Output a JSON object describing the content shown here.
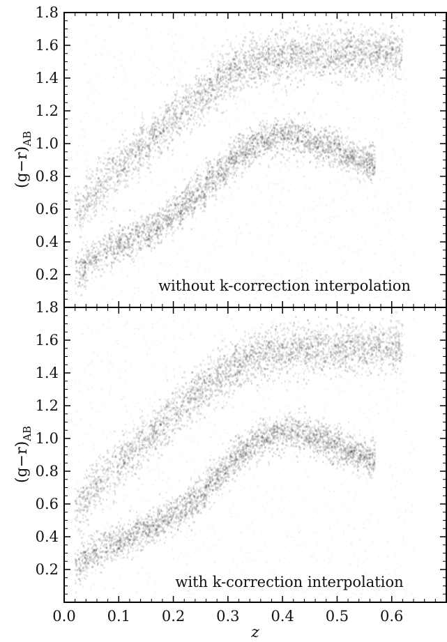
{
  "chart_data": [
    {
      "type": "heatmap",
      "panel": "top",
      "annotation": "without k-correction interpolation",
      "ylabel": "(g−r)",
      "ylabel_sub": "AB",
      "xlim": [
        0.0,
        0.7
      ],
      "ylim": [
        0.0,
        1.8
      ],
      "yticks": [
        "0.2",
        "0.4",
        "0.6",
        "0.8",
        "1.0",
        "1.2",
        "1.4",
        "1.6",
        "1.8"
      ],
      "ytick_values": [
        0.2,
        0.4,
        0.6,
        0.8,
        1.0,
        1.2,
        1.4,
        1.6,
        1.8
      ],
      "grid": false,
      "interpolated": false,
      "red_sequence": [
        {
          "z": 0.02,
          "color": 0.56
        },
        {
          "z": 0.05,
          "color": 0.68
        },
        {
          "z": 0.1,
          "color": 0.85
        },
        {
          "z": 0.15,
          "color": 1.0
        },
        {
          "z": 0.2,
          "color": 1.15
        },
        {
          "z": 0.25,
          "color": 1.3
        },
        {
          "z": 0.3,
          "color": 1.42
        },
        {
          "z": 0.35,
          "color": 1.5
        },
        {
          "z": 0.4,
          "color": 1.54
        },
        {
          "z": 0.5,
          "color": 1.55
        },
        {
          "z": 0.6,
          "color": 1.56
        }
      ],
      "blue_cloud": [
        {
          "z": 0.02,
          "color": 0.2
        },
        {
          "z": 0.05,
          "color": 0.3
        },
        {
          "z": 0.1,
          "color": 0.38
        },
        {
          "z": 0.15,
          "color": 0.46
        },
        {
          "z": 0.2,
          "color": 0.56
        },
        {
          "z": 0.25,
          "color": 0.72
        },
        {
          "z": 0.3,
          "color": 0.88
        },
        {
          "z": 0.35,
          "color": 1.0
        },
        {
          "z": 0.4,
          "color": 1.06
        },
        {
          "z": 0.45,
          "color": 1.02
        },
        {
          "z": 0.5,
          "color": 0.96
        },
        {
          "z": 0.56,
          "color": 0.88
        }
      ]
    },
    {
      "type": "heatmap",
      "panel": "bottom",
      "annotation": "with k-correction interpolation",
      "ylabel": "(g−r)",
      "ylabel_sub": "AB",
      "xlabel": "z",
      "xlim": [
        0.0,
        0.7
      ],
      "ylim": [
        0.0,
        1.8
      ],
      "xticks": [
        "0.0",
        "0.1",
        "0.2",
        "0.3",
        "0.4",
        "0.5",
        "0.6"
      ],
      "xtick_values": [
        0.0,
        0.1,
        0.2,
        0.3,
        0.4,
        0.5,
        0.6
      ],
      "yticks": [
        "0.2",
        "0.4",
        "0.6",
        "0.8",
        "1.0",
        "1.2",
        "1.4",
        "1.6",
        "1.8"
      ],
      "ytick_values": [
        0.2,
        0.4,
        0.6,
        0.8,
        1.0,
        1.2,
        1.4,
        1.6,
        1.8
      ],
      "grid": false,
      "interpolated": true,
      "red_sequence": [
        {
          "z": 0.02,
          "color": 0.56
        },
        {
          "z": 0.05,
          "color": 0.68
        },
        {
          "z": 0.1,
          "color": 0.85
        },
        {
          "z": 0.15,
          "color": 1.0
        },
        {
          "z": 0.2,
          "color": 1.15
        },
        {
          "z": 0.25,
          "color": 1.3
        },
        {
          "z": 0.3,
          "color": 1.42
        },
        {
          "z": 0.35,
          "color": 1.5
        },
        {
          "z": 0.4,
          "color": 1.54
        },
        {
          "z": 0.5,
          "color": 1.55
        },
        {
          "z": 0.6,
          "color": 1.56
        }
      ],
      "blue_cloud": [
        {
          "z": 0.02,
          "color": 0.2
        },
        {
          "z": 0.05,
          "color": 0.3
        },
        {
          "z": 0.1,
          "color": 0.36
        },
        {
          "z": 0.15,
          "color": 0.44
        },
        {
          "z": 0.2,
          "color": 0.53
        },
        {
          "z": 0.25,
          "color": 0.66
        },
        {
          "z": 0.3,
          "color": 0.84
        },
        {
          "z": 0.35,
          "color": 0.98
        },
        {
          "z": 0.4,
          "color": 1.05
        },
        {
          "z": 0.45,
          "color": 1.02
        },
        {
          "z": 0.5,
          "color": 0.95
        },
        {
          "z": 0.56,
          "color": 0.88
        }
      ]
    }
  ],
  "colors": {
    "density": "#1a1a1a",
    "axes": "#000000",
    "background": "#ffffff"
  }
}
